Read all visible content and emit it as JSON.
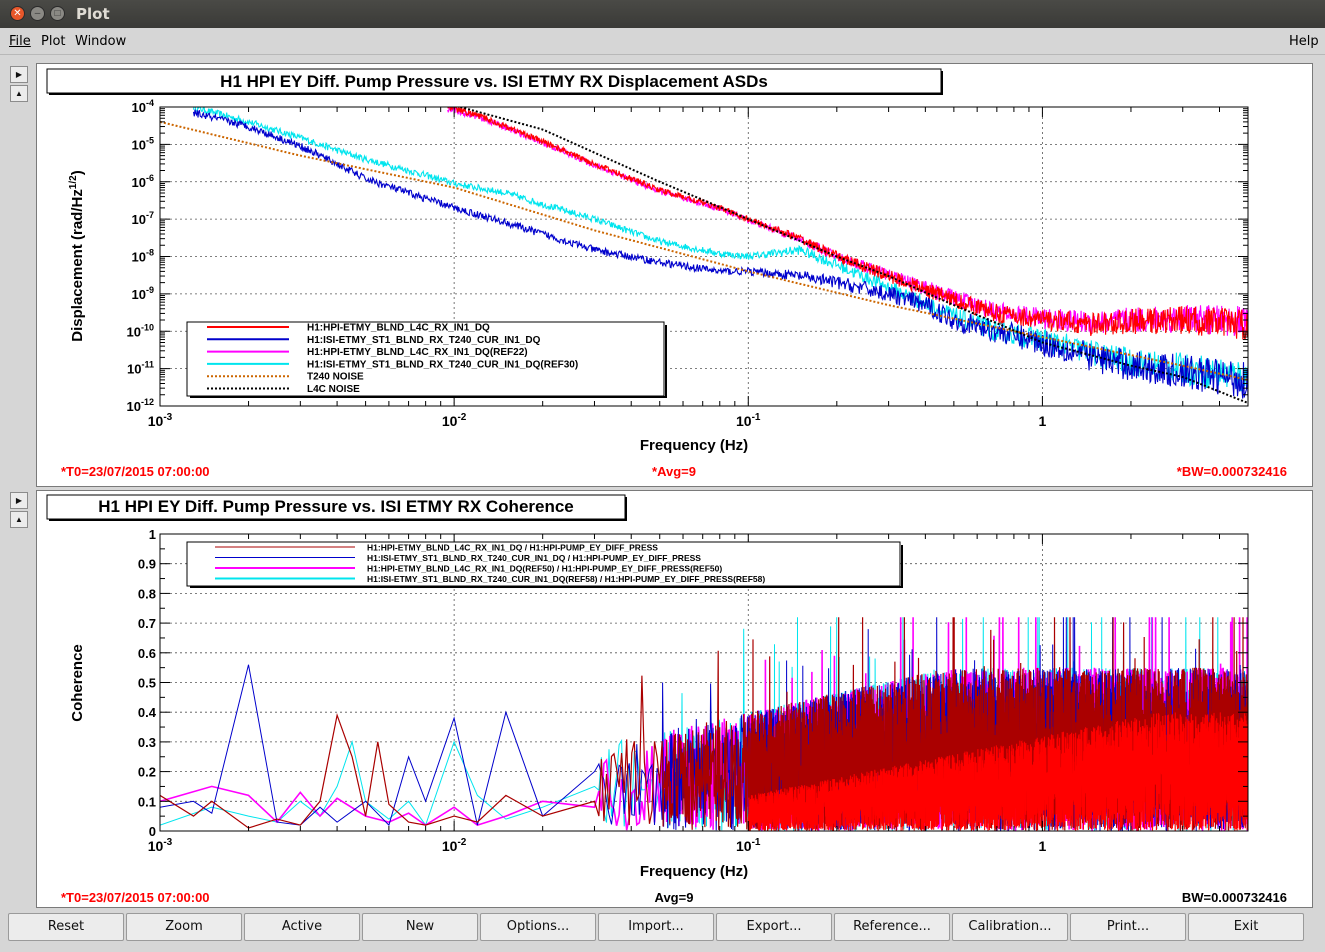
{
  "window": {
    "title": "Plot"
  },
  "menu": {
    "file": "File",
    "plot": "Plot",
    "window": "Window",
    "help": "Help"
  },
  "colors": {
    "red": "#ff0000",
    "blue": "#0000cc",
    "magenta": "#ff00ff",
    "cyan": "#00e5ee",
    "orange": "#cc6600",
    "black": "#000000",
    "info_red": "#ff0000"
  },
  "asd": {
    "title": "H1 HPI EY Diff. Pump Pressure vs. ISI ETMY RX Displacement ASDs",
    "ylabel_main": "Displacement (rad/Hz",
    "ylabel_sup": "1/2",
    "ylabel_end": ")",
    "xlabel": "Frequency (Hz)",
    "t0": "*T0=23/07/2015 07:00:00",
    "avg": "*Avg=9",
    "bw": "*BW=0.000732416",
    "xticks": [
      {
        "v": 0.001,
        "base": "10",
        "exp": "-3"
      },
      {
        "v": 0.01,
        "base": "10",
        "exp": "-2"
      },
      {
        "v": 0.1,
        "base": "10",
        "exp": "-1"
      },
      {
        "v": 1,
        "base": "1",
        "exp": ""
      }
    ],
    "yticks": [
      {
        "v": -4,
        "base": "10",
        "exp": "-4"
      },
      {
        "v": -5,
        "base": "10",
        "exp": "-5"
      },
      {
        "v": -6,
        "base": "10",
        "exp": "-6"
      },
      {
        "v": -7,
        "base": "10",
        "exp": "-7"
      },
      {
        "v": -8,
        "base": "10",
        "exp": "-8"
      },
      {
        "v": -9,
        "base": "10",
        "exp": "-9"
      },
      {
        "v": -10,
        "base": "10",
        "exp": "-10"
      },
      {
        "v": -11,
        "base": "10",
        "exp": "-11"
      },
      {
        "v": -12,
        "base": "10",
        "exp": "-12"
      }
    ],
    "legend": [
      {
        "label": "H1:HPI-ETMY_BLND_L4C_RX_IN1_DQ",
        "color": "#ff0000",
        "style": "solid"
      },
      {
        "label": "H1:ISI-ETMY_ST1_BLND_RX_T240_CUR_IN1_DQ",
        "color": "#0000cc",
        "style": "solid"
      },
      {
        "label": "H1:HPI-ETMY_BLND_L4C_RX_IN1_DQ(REF22)",
        "color": "#ff00ff",
        "style": "solid"
      },
      {
        "label": "H1:ISI-ETMY_ST1_BLND_RX_T240_CUR_IN1_DQ(REF30)",
        "color": "#00e5ee",
        "style": "solid"
      },
      {
        "label": "T240 NOISE",
        "color": "#cc6600",
        "style": "dotted"
      },
      {
        "label": "L4C NOISE",
        "color": "#000000",
        "style": "dotted"
      }
    ]
  },
  "coh": {
    "title": "H1 HPI EY Diff. Pump Pressure vs. ISI ETMY RX Coherence",
    "ylabel": "Coherence",
    "xlabel": "Frequency (Hz)",
    "t0": "*T0=23/07/2015 07:00:00",
    "avg": "Avg=9",
    "bw": "BW=0.000732416",
    "xticks": [
      {
        "v": 0.001,
        "base": "10",
        "exp": "-3"
      },
      {
        "v": 0.01,
        "base": "10",
        "exp": "-2"
      },
      {
        "v": 0.1,
        "base": "10",
        "exp": "-1"
      },
      {
        "v": 1,
        "base": "1",
        "exp": ""
      }
    ],
    "yticks": [
      {
        "v": 1,
        "label": "1"
      },
      {
        "v": 0.9,
        "label": "0.9"
      },
      {
        "v": 0.8,
        "label": "0.8"
      },
      {
        "v": 0.7,
        "label": "0.7"
      },
      {
        "v": 0.6,
        "label": "0.6"
      },
      {
        "v": 0.5,
        "label": "0.5"
      },
      {
        "v": 0.4,
        "label": "0.4"
      },
      {
        "v": 0.3,
        "label": "0.3"
      },
      {
        "v": 0.2,
        "label": "0.2"
      },
      {
        "v": 0.1,
        "label": "0.1"
      },
      {
        "v": 0,
        "label": "0"
      }
    ],
    "legend": [
      {
        "label": "H1:HPI-ETMY_BLND_L4C_RX_IN1_DQ / H1:HPI-PUMP_EY_DIFF_PRESS",
        "color": "#aa0000"
      },
      {
        "label": "H1:ISI-ETMY_ST1_BLND_RX_T240_CUR_IN1_DQ / H1:HPI-PUMP_EY_DIFF_PRESS",
        "color": "#0000cc"
      },
      {
        "label": "H1:HPI-ETMY_BLND_L4C_RX_IN1_DQ(REF50) / H1:HPI-PUMP_EY_DIFF_PRESS(REF50)",
        "color": "#ff00ff"
      },
      {
        "label": "H1:ISI-ETMY_ST1_BLND_RX_T240_CUR_IN1_DQ(REF58) / H1:HPI-PUMP_EY_DIFF_PRESS(REF58)",
        "color": "#00e5ee"
      }
    ]
  },
  "buttons": [
    "Reset",
    "Zoom",
    "Active",
    "New",
    "Options...",
    "Import...",
    "Export...",
    "Reference...",
    "Calibration...",
    "Print...",
    "Exit"
  ],
  "chart_data": [
    {
      "type": "line",
      "title": "H1 HPI EY Diff. Pump Pressure vs. ISI ETMY RX Displacement ASDs",
      "xlabel": "Frequency (Hz)",
      "ylabel": "Displacement (rad/Hz^1/2)",
      "xscale": "log",
      "yscale": "log",
      "xlim": [
        0.001,
        5
      ],
      "ylim": [
        1e-12,
        0.0001
      ],
      "grid": true,
      "legend_position": "bottom-left",
      "series": [
        {
          "name": "H1:HPI-ETMY_BLND_L4C_RX_IN1_DQ",
          "color": "#ff0000",
          "x": [
            0.0095,
            0.012,
            0.015,
            0.02,
            0.03,
            0.05,
            0.08,
            0.1,
            0.15,
            0.2,
            0.3,
            0.5,
            0.7,
            1,
            1.5,
            2,
            3,
            5
          ],
          "y": [
            0.0001,
            6e-05,
            3e-05,
            1.2e-05,
            3e-06,
            6e-07,
            2e-07,
            1e-07,
            3e-08,
            1e-08,
            3e-09,
            7e-10,
            3e-10,
            2e-10,
            1.5e-10,
            1.8e-10,
            2e-10,
            1.5e-10
          ]
        },
        {
          "name": "H1:ISI-ETMY_ST1_BLND_RX_T240_CUR_IN1_DQ",
          "color": "#0000cc",
          "x": [
            0.0013,
            0.002,
            0.003,
            0.004,
            0.005,
            0.007,
            0.01,
            0.015,
            0.02,
            0.03,
            0.05,
            0.08,
            0.1,
            0.15,
            0.2,
            0.3,
            0.4,
            0.5,
            0.7,
            1,
            1.5,
            2,
            3,
            5
          ],
          "y": [
            7e-05,
            3e-05,
            9e-06,
            3e-06,
            1.2e-06,
            5e-07,
            2e-07,
            8e-08,
            4e-08,
            1.5e-08,
            7e-09,
            4e-09,
            4e-09,
            3e-09,
            2e-09,
            1e-09,
            5e-10,
            2e-10,
            1e-10,
            5e-11,
            2e-11,
            1.2e-11,
            8e-12,
            5e-12
          ]
        },
        {
          "name": "H1:HPI-ETMY_BLND_L4C_RX_IN1_DQ(REF22)",
          "color": "#ff00ff",
          "x": [
            0.0095,
            0.012,
            0.015,
            0.02,
            0.03,
            0.05,
            0.08,
            0.1,
            0.15,
            0.2,
            0.3,
            0.5,
            0.7,
            1,
            1.5,
            2,
            3,
            5
          ],
          "y": [
            9e-05,
            5.5e-05,
            2.8e-05,
            1.1e-05,
            2.8e-06,
            5.5e-07,
            1.9e-07,
            9.5e-08,
            2.9e-08,
            1e-08,
            3.2e-09,
            8e-10,
            3.3e-10,
            2.2e-10,
            1.7e-10,
            2e-10,
            2.2e-10,
            1.8e-10
          ]
        },
        {
          "name": "H1:ISI-ETMY_ST1_BLND_RX_T240_CUR_IN1_DQ(REF30)",
          "color": "#00e5ee",
          "x": [
            0.0013,
            0.002,
            0.003,
            0.004,
            0.005,
            0.007,
            0.01,
            0.015,
            0.02,
            0.03,
            0.05,
            0.08,
            0.1,
            0.15,
            0.2,
            0.3,
            0.5,
            0.7,
            1,
            1.5,
            2,
            3,
            5
          ],
          "y": [
            0.0001,
            4e-05,
            1.5e-05,
            7e-06,
            4e-06,
            2e-06,
            9e-07,
            5e-07,
            2.5e-07,
            1e-07,
            2.5e-08,
            1.2e-08,
            1e-08,
            1.5e-08,
            6e-09,
            1.5e-09,
            2.5e-10,
            1e-10,
            6e-11,
            2.5e-11,
            1.5e-11,
            1e-11,
            6e-12
          ]
        },
        {
          "name": "T240 NOISE",
          "color": "#cc6600",
          "x": [
            0.001,
            0.003,
            0.01,
            0.03,
            0.1,
            0.3,
            1,
            3,
            5
          ],
          "y": [
            4e-05,
            5e-06,
            7e-07,
            5e-08,
            4e-09,
            5e-10,
            7e-11,
            1.2e-11,
            5e-12
          ]
        },
        {
          "name": "L4C NOISE",
          "color": "#000000",
          "x": [
            0.0105,
            0.02,
            0.03,
            0.05,
            0.1,
            0.2,
            0.3,
            0.5,
            1,
            2,
            3,
            5
          ],
          "y": [
            0.0001,
            2.5e-05,
            6e-06,
            1e-06,
            1e-07,
            1e-08,
            3e-09,
            5e-10,
            5e-11,
            1.2e-11,
            6e-12,
            1.2e-12
          ]
        }
      ]
    },
    {
      "type": "line",
      "title": "H1 HPI EY Diff. Pump Pressure vs. ISI ETMY RX Coherence",
      "xlabel": "Frequency (Hz)",
      "ylabel": "Coherence",
      "xscale": "log",
      "xlim": [
        0.001,
        5
      ],
      "ylim": [
        0,
        1
      ],
      "grid": true,
      "legend_position": "top-left",
      "series": [
        {
          "name": "H1:HPI-ETMY_BLND_L4C_RX_IN1_DQ / H1:HPI-PUMP_EY_DIFF_PRESS",
          "color": "#aa0000",
          "x": [
            0.001,
            0.0013,
            0.0015,
            0.002,
            0.0025,
            0.003,
            0.0035,
            0.004,
            0.0045,
            0.005,
            0.0055,
            0.006,
            0.007,
            0.008,
            0.01,
            0.012,
            0.015,
            0.02,
            0.03
          ],
          "y": [
            0.12,
            0.05,
            0.1,
            0.01,
            0.04,
            0.02,
            0.1,
            0.39,
            0.25,
            0.05,
            0.3,
            0.09,
            0.03,
            0.02,
            0.05,
            0.03,
            0.12,
            0.05,
            0.1
          ]
        },
        {
          "name": "H1:ISI-ETMY_ST1_BLND_RX_T240_CUR_IN1_DQ / H1:HPI-PUMP_EY_DIFF_PRESS",
          "color": "#0000cc",
          "x": [
            0.001,
            0.0013,
            0.0015,
            0.002,
            0.0025,
            0.003,
            0.0035,
            0.004,
            0.005,
            0.006,
            0.007,
            0.008,
            0.01,
            0.012,
            0.015,
            0.02,
            0.03
          ],
          "y": [
            0.08,
            0.1,
            0.06,
            0.56,
            0.03,
            0.02,
            0.08,
            0.03,
            0.1,
            0.02,
            0.25,
            0.1,
            0.38,
            0.02,
            0.4,
            0.05,
            0.2
          ]
        },
        {
          "name": "H1:HPI-ETMY_BLND_L4C_RX_IN1_DQ(REF50) / H1:HPI-PUMP_EY_DIFF_PRESS(REF50)",
          "color": "#ff00ff",
          "x": [
            0.001,
            0.0015,
            0.002,
            0.0025,
            0.003,
            0.0035,
            0.004,
            0.005,
            0.006,
            0.007,
            0.008,
            0.01,
            0.012,
            0.015,
            0.02,
            0.03
          ],
          "y": [
            0.1,
            0.15,
            0.12,
            0.03,
            0.13,
            0.05,
            0.11,
            0.05,
            0.03,
            0.06,
            0.02,
            0.08,
            0.02,
            0.05,
            0.1,
            0.08
          ]
        },
        {
          "name": "H1:ISI-ETMY_ST1_BLND_RX_T240_CUR_IN1_DQ(REF58) / H1:HPI-PUMP_EY_DIFF_PRESS(REF58)",
          "color": "#00e5ee",
          "x": [
            0.001,
            0.0015,
            0.002,
            0.0025,
            0.003,
            0.0035,
            0.004,
            0.0045,
            0.005,
            0.006,
            0.007,
            0.008,
            0.01,
            0.012,
            0.015,
            0.02,
            0.03
          ],
          "y": [
            0.02,
            0.08,
            0.05,
            0.03,
            0.1,
            0.05,
            0.15,
            0.3,
            0.1,
            0.04,
            0.1,
            0.02,
            0.3,
            0.12,
            0.04,
            0.08,
            0.15
          ]
        }
      ]
    }
  ]
}
